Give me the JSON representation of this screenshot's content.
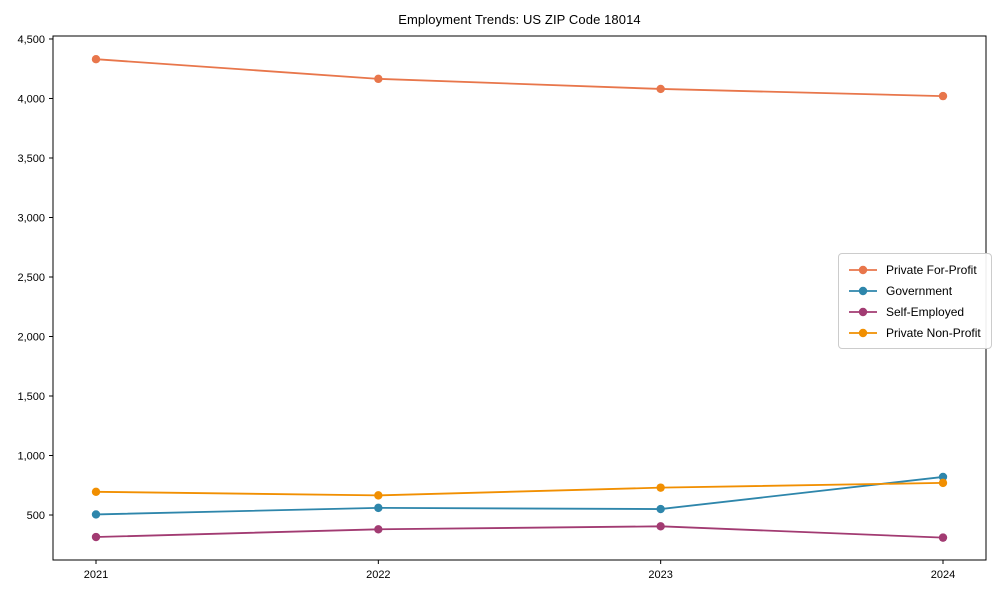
{
  "chart_data": {
    "type": "line",
    "title": "Employment Trends: US ZIP Code 18014",
    "xlabel": "",
    "ylabel": "",
    "categories": [
      "2021",
      "2022",
      "2023",
      "2024"
    ],
    "series": [
      {
        "name": "Private For-Profit",
        "color": "#E8764B",
        "values": [
          4330,
          4165,
          4080,
          4020
        ]
      },
      {
        "name": "Government",
        "color": "#2E86AB",
        "values": [
          505,
          560,
          550,
          820
        ]
      },
      {
        "name": "Self-Employed",
        "color": "#A23B72",
        "values": [
          315,
          380,
          405,
          310
        ]
      },
      {
        "name": "Private Non-Profit",
        "color": "#F18F01",
        "values": [
          695,
          665,
          730,
          770
        ]
      }
    ],
    "y_ticks": [
      500,
      1000,
      1500,
      2000,
      2500,
      3000,
      3500,
      4000,
      4500
    ],
    "y_tick_labels": [
      "500",
      "1,000",
      "1,500",
      "2,000",
      "2,500",
      "3,000",
      "3,500",
      "4,000",
      "4,500"
    ],
    "ylim": [
      122,
      4525
    ],
    "grid": false,
    "legend_position": "center right",
    "axis_color": "#000000",
    "legend_border_color": "#cccccc",
    "marker": "circle",
    "marker_radius": 4.2,
    "line_width": 1.8
  }
}
